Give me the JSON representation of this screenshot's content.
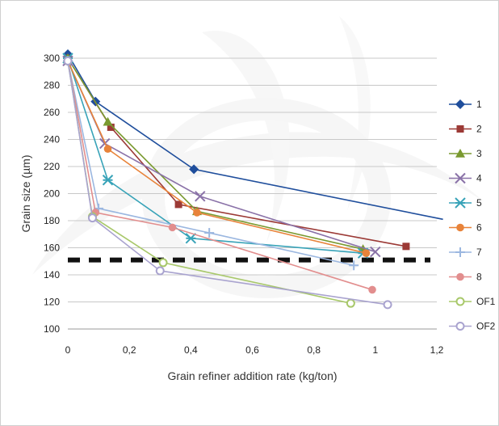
{
  "chart_data": {
    "type": "line",
    "xlabel": "Grain refiner addition rate (kg/ton)",
    "ylabel": "Grain size (µm)",
    "xlim": [
      0,
      1.2
    ],
    "ylim": [
      100,
      300
    ],
    "x_ticks": [
      "0",
      "0,2",
      "0,4",
      "0,6",
      "0,8",
      "1",
      "1,2"
    ],
    "y_ticks": [
      "100",
      "120",
      "140",
      "160",
      "180",
      "200",
      "220",
      "240",
      "260",
      "280",
      "300"
    ],
    "grid": "horizontal",
    "legend_position": "right",
    "reference_line": {
      "y": 151,
      "style": "dashed"
    },
    "series": [
      {
        "name": "1",
        "color": "#1f4e9c",
        "marker": "diamond",
        "x": [
          0,
          0.09,
          0.41,
          1.22
        ],
        "y": [
          303,
          268,
          218,
          181
        ]
      },
      {
        "name": "2",
        "color": "#9c3a36",
        "marker": "square",
        "x": [
          0,
          0.14,
          0.36,
          1.1
        ],
        "y": [
          300,
          249,
          192,
          161
        ]
      },
      {
        "name": "3",
        "color": "#7a9a30",
        "marker": "triangle",
        "x": [
          0,
          0.13,
          0.42,
          0.96
        ],
        "y": [
          300,
          253,
          187,
          159
        ]
      },
      {
        "name": "4",
        "color": "#8a72a8",
        "marker": "x",
        "x": [
          0,
          0.12,
          0.43,
          1.0
        ],
        "y": [
          298,
          237,
          198,
          157
        ]
      },
      {
        "name": "5",
        "color": "#38a3b8",
        "marker": "star",
        "x": [
          0,
          0.13,
          0.4,
          0.96
        ],
        "y": [
          300,
          210,
          167,
          156
        ]
      },
      {
        "name": "6",
        "color": "#e8833a",
        "marker": "circle",
        "x": [
          0,
          0.13,
          0.42,
          0.97
        ],
        "y": [
          298,
          233,
          186,
          156
        ]
      },
      {
        "name": "7",
        "color": "#9bb7e0",
        "marker": "plus",
        "x": [
          0,
          0.1,
          0.46,
          0.93
        ],
        "y": [
          298,
          189,
          171,
          147
        ]
      },
      {
        "name": "8",
        "color": "#e28e8e",
        "marker": "circle",
        "x": [
          0,
          0.09,
          0.34,
          0.99
        ],
        "y": [
          298,
          186,
          175,
          129
        ]
      },
      {
        "name": "OF1",
        "color": "#a8c86a",
        "marker": "open-circle",
        "x": [
          0,
          0.08,
          0.31,
          0.92
        ],
        "y": [
          298,
          183,
          149,
          119
        ]
      },
      {
        "name": "OF2",
        "color": "#a9a3cf",
        "marker": "open-circle",
        "x": [
          0,
          0.08,
          0.3,
          1.04
        ],
        "y": [
          298,
          182,
          143,
          118
        ]
      }
    ]
  }
}
